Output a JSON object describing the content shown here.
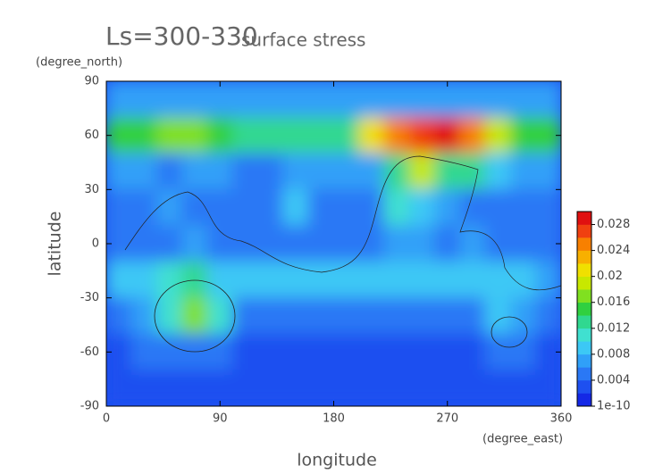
{
  "chart_data": {
    "type": "contour",
    "title": "Ls=300-330",
    "subtitle": "surface stress",
    "xlabel": "longitude",
    "ylabel": "latitude",
    "xunit": "(degree_east)",
    "yunit": "(degree_north)",
    "xlim": [
      0,
      360
    ],
    "ylim": [
      -90,
      90
    ],
    "xticks": [
      0,
      90,
      180,
      270,
      360
    ],
    "yticks": [
      -90,
      -60,
      -30,
      0,
      30,
      60,
      90
    ],
    "x": [
      10,
      30,
      50,
      70,
      90,
      110,
      130,
      150,
      170,
      190,
      210,
      230,
      250,
      270,
      290,
      310,
      330,
      350
    ],
    "y": [
      80,
      60,
      40,
      20,
      0,
      -20,
      -40,
      -60,
      -80
    ],
    "z": [
      [
        0.006,
        0.006,
        0.006,
        0.006,
        0.006,
        0.006,
        0.006,
        0.006,
        0.006,
        0.006,
        0.006,
        0.007,
        0.007,
        0.007,
        0.006,
        0.006,
        0.006,
        0.006
      ],
      [
        0.014,
        0.015,
        0.016,
        0.016,
        0.015,
        0.013,
        0.012,
        0.012,
        0.012,
        0.012,
        0.02,
        0.024,
        0.026,
        0.028,
        0.024,
        0.018,
        0.014,
        0.014
      ],
      [
        0.006,
        0.006,
        0.005,
        0.006,
        0.006,
        0.005,
        0.005,
        0.006,
        0.006,
        0.006,
        0.007,
        0.012,
        0.018,
        0.012,
        0.013,
        0.008,
        0.007,
        0.006
      ],
      [
        0.004,
        0.005,
        0.006,
        0.005,
        0.004,
        0.005,
        0.004,
        0.009,
        0.005,
        0.004,
        0.005,
        0.01,
        0.009,
        0.006,
        0.005,
        0.004,
        0.004,
        0.004
      ],
      [
        0.004,
        0.004,
        0.005,
        0.006,
        0.004,
        0.005,
        0.005,
        0.005,
        0.004,
        0.004,
        0.005,
        0.007,
        0.006,
        0.005,
        0.006,
        0.005,
        0.004,
        0.004
      ],
      [
        0.008,
        0.009,
        0.01,
        0.012,
        0.009,
        0.008,
        0.009,
        0.008,
        0.009,
        0.009,
        0.008,
        0.008,
        0.009,
        0.008,
        0.009,
        0.009,
        0.008,
        0.007
      ],
      [
        0.004,
        0.006,
        0.011,
        0.016,
        0.01,
        0.005,
        0.004,
        0.004,
        0.004,
        0.004,
        0.004,
        0.004,
        0.004,
        0.004,
        0.005,
        0.008,
        0.006,
        0.004
      ],
      [
        0.003,
        0.004,
        0.005,
        0.004,
        0.005,
        0.003,
        0.003,
        0.003,
        0.003,
        0.003,
        0.003,
        0.003,
        0.003,
        0.003,
        0.003,
        0.004,
        0.004,
        0.003
      ],
      [
        0.003,
        0.003,
        0.003,
        0.003,
        0.003,
        0.003,
        0.003,
        0.003,
        0.003,
        0.003,
        0.003,
        0.003,
        0.003,
        0.003,
        0.003,
        0.003,
        0.003,
        0.003
      ]
    ],
    "colorbar": {
      "lim": [
        0,
        0.03
      ],
      "ticks": [
        {
          "value": 1e-10,
          "label": "1e-10"
        },
        0.004,
        0.008,
        0.012,
        0.016,
        0.02,
        0.024,
        0.028
      ],
      "colors": [
        "#1428e6",
        "#1e50f0",
        "#2a78f5",
        "#30a0f8",
        "#3cc8f5",
        "#40e0d0",
        "#30d890",
        "#30d040",
        "#80e020",
        "#c8e800",
        "#f0e000",
        "#f8b000",
        "#f88000",
        "#f04010",
        "#e01010"
      ]
    }
  }
}
